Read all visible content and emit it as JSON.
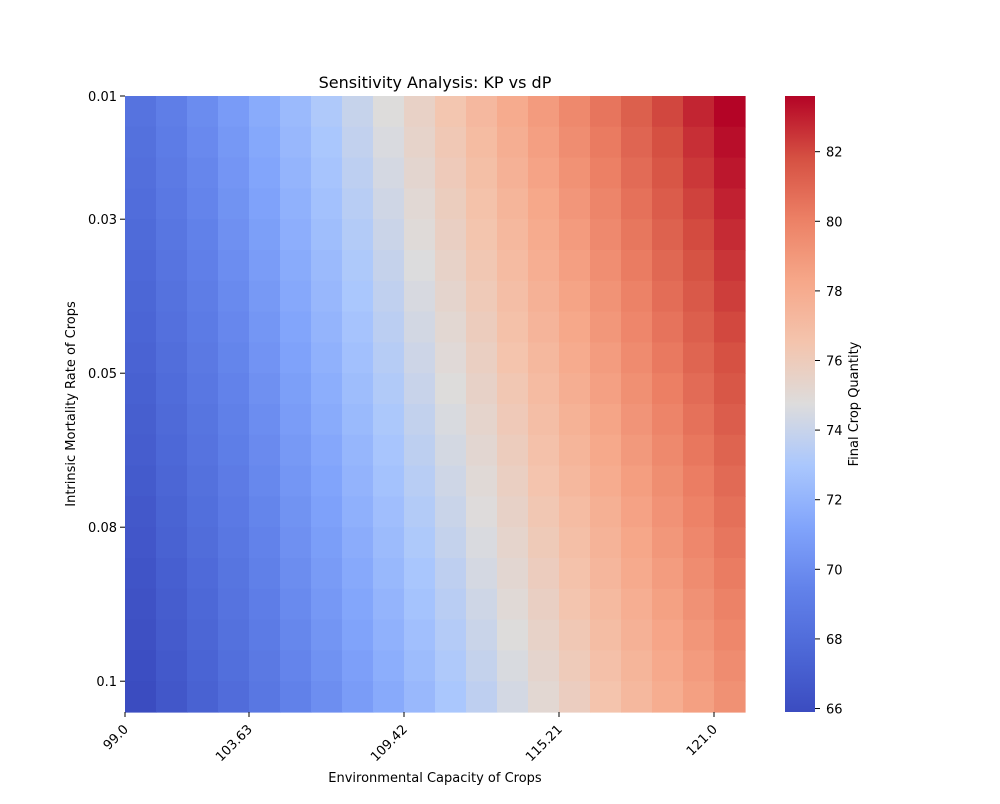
{
  "chart_data": {
    "type": "heatmap",
    "title": "Sensitivity Analysis: KP vs dP",
    "xlabel": "Environmental Capacity of Crops",
    "ylabel": "Intrinsic Mortality Rate of Crops",
    "colorbar_label": "Final Crop Quantity",
    "colormap": "coolwarm",
    "colormap_low": "#3b4cc0",
    "colormap_mid": "#dddddd",
    "colormap_high": "#b40426",
    "x_range": [
      99.0,
      121.0
    ],
    "y_range": [
      0.01,
      0.1
    ],
    "n_cols": 20,
    "n_rows": 20,
    "x_tick_labels": [
      "99.0",
      "103.63",
      "109.42",
      "115.21",
      "121.0"
    ],
    "x_tick_indices": [
      0,
      4,
      9,
      14,
      19
    ],
    "y_tick_labels": [
      "0.01",
      "0.03",
      "0.05",
      "0.08",
      "0.1"
    ],
    "y_tick_indices": [
      0,
      4,
      9,
      14,
      19
    ],
    "colorbar_range": [
      65.9,
      83.6
    ],
    "colorbar_ticks": [
      66,
      68,
      70,
      72,
      74,
      76,
      78,
      80,
      82
    ],
    "value_top_left": 68.4,
    "value_top_right": 83.6,
    "value_bottom_left": 65.9,
    "value_bottom_right": 79.3
  }
}
